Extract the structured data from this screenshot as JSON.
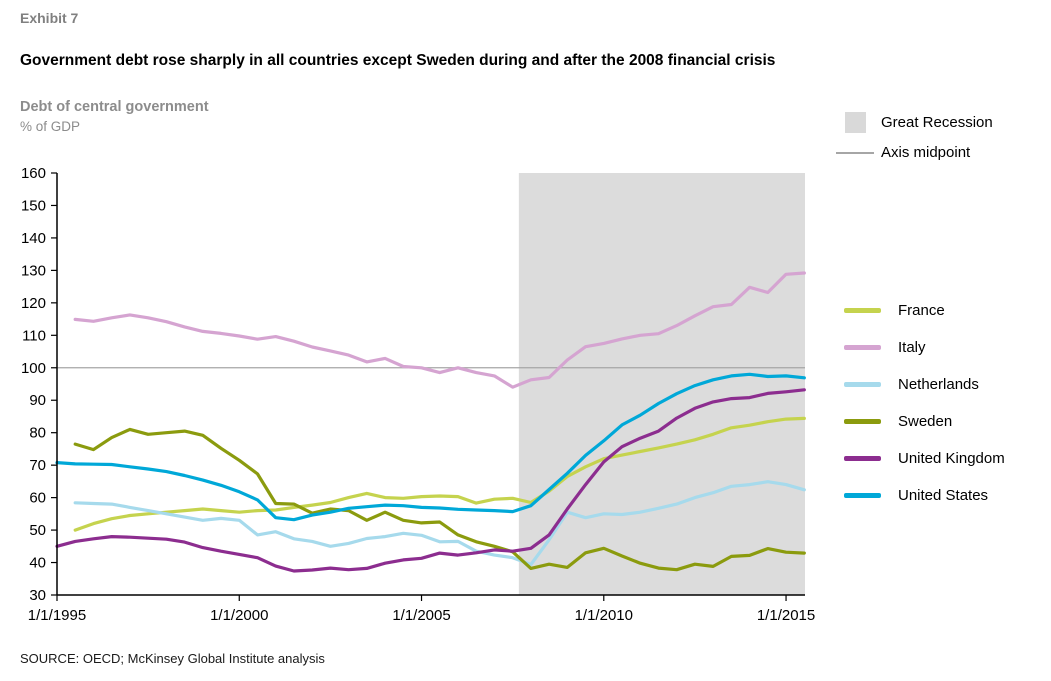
{
  "header": {
    "exhibit": "Exhibit 7",
    "title": "Government debt rose sharply in all countries except Sweden during and after the 2008 financial crisis",
    "subtitle": "Debt of central government",
    "unit": "% of GDP"
  },
  "source": "SOURCE:  OECD; McKinsey Global Institute analysis",
  "chart_data": {
    "type": "line",
    "title": "Debt of central government",
    "ylabel": "% of GDP",
    "xlabel": "",
    "xlim": [
      1995,
      2015.52
    ],
    "ylim": [
      30,
      160
    ],
    "grid": false,
    "legend_position": "right",
    "yticks": [
      30,
      40,
      50,
      60,
      70,
      80,
      90,
      100,
      110,
      120,
      130,
      140,
      150,
      160
    ],
    "xticks": [
      {
        "label": "1/1/1995",
        "year": 1995
      },
      {
        "label": "1/1/2000",
        "year": 2000
      },
      {
        "label": "1/1/2005",
        "year": 2005
      },
      {
        "label": "1/1/2010",
        "year": 2010
      },
      {
        "label": "1/1/2015",
        "year": 2015
      }
    ],
    "band": {
      "label": "Great Recession",
      "from": 2007.67,
      "to": 2015.52,
      "color": "#dcdcdc",
      "swatch_color": "#d9d9d9"
    },
    "midpoint": {
      "label": "Axis midpoint",
      "value": 100,
      "color": "#a6a6a6"
    },
    "x": [
      1995,
      1995.5,
      1996,
      1996.5,
      1997,
      1997.5,
      1998,
      1998.5,
      1999,
      1999.5,
      2000,
      2000.5,
      2001,
      2001.5,
      2002,
      2002.5,
      2003,
      2003.5,
      2004,
      2004.5,
      2005,
      2005.5,
      2006,
      2006.5,
      2007,
      2007.5,
      2008,
      2008.5,
      2009,
      2009.5,
      2010,
      2010.5,
      2011,
      2011.5,
      2012,
      2012.5,
      2013,
      2013.5,
      2014,
      2014.5,
      2015,
      2015.5
    ],
    "series": [
      {
        "name": "France",
        "color": "#c5d34e",
        "values": [
          null,
          50,
          52,
          53.5,
          54.5,
          55,
          55.5,
          56,
          56.5,
          56,
          55.5,
          56,
          56.2,
          57,
          57.7,
          58.5,
          60,
          61.3,
          60,
          59.8,
          60.3,
          60.5,
          60.3,
          58.3,
          59.5,
          59.8,
          58.5,
          62,
          66.5,
          69.5,
          72,
          73.1,
          74.2,
          75.3,
          76.5,
          77.8,
          79.5,
          81.5,
          82.3,
          83.4,
          84.2,
          84.4
        ]
      },
      {
        "name": "Italy",
        "color": "#d5a4d1",
        "values": [
          null,
          114.9,
          114.3,
          115.4,
          116.3,
          115.4,
          114.2,
          112.6,
          111.2,
          110.6,
          109.8,
          108.8,
          109.6,
          108.2,
          106.4,
          105.2,
          103.9,
          101.8,
          102.9,
          100.4,
          100,
          98.5,
          100,
          98.5,
          97.5,
          94,
          96.3,
          97,
          102.4,
          106.5,
          107.5,
          108.9,
          110,
          110.5,
          113,
          116,
          118.8,
          119.5,
          124.8,
          123.2,
          128.8,
          129.2
        ]
      },
      {
        "name": "Netherlands",
        "color": "#a6daec",
        "values": [
          null,
          58.4,
          58.2,
          58,
          57,
          56,
          55,
          54,
          53,
          53.6,
          53,
          48.5,
          49.5,
          47.3,
          46.5,
          45,
          45.9,
          47.4,
          48,
          49,
          48.4,
          46.4,
          46.5,
          43.5,
          42.3,
          41.5,
          39.4,
          47,
          55.5,
          53.8,
          55,
          54.8,
          55.5,
          56.7,
          58,
          60,
          61.5,
          63.5,
          64,
          64.9,
          64,
          62.4
        ]
      },
      {
        "name": "Sweden",
        "color": "#8b9b0e",
        "values": [
          null,
          76.5,
          74.8,
          78.5,
          81,
          79.5,
          80,
          80.5,
          79.2,
          75.2,
          71.5,
          67.3,
          58.2,
          58,
          55.2,
          56.5,
          56,
          53,
          55.5,
          53,
          52.2,
          52.5,
          48.5,
          46.4,
          45,
          43.3,
          38.2,
          39.5,
          38.5,
          43,
          44.4,
          42,
          39.8,
          38.3,
          37.8,
          39.5,
          38.8,
          41.9,
          42.2,
          44.3,
          43.2,
          42.9
        ]
      },
      {
        "name": "United Kingdom",
        "color": "#8c2d8f",
        "values": [
          45,
          46.5,
          47.3,
          48,
          47.8,
          47.5,
          47.2,
          46.3,
          44.6,
          43.5,
          42.5,
          41.5,
          38.9,
          37.4,
          37.7,
          38.3,
          37.8,
          38.2,
          39.8,
          40.8,
          41.3,
          42.9,
          42.3,
          43,
          43.9,
          43.5,
          44.4,
          48.5,
          56.5,
          64,
          71,
          75.7,
          78.3,
          80.5,
          84.5,
          87.5,
          89.5,
          90.5,
          90.8,
          92.1,
          92.6,
          93.2
        ]
      },
      {
        "name": "United States",
        "color": "#00a8d8",
        "values": [
          70.8,
          70.4,
          70.3,
          70.2,
          69.5,
          68.8,
          68,
          66.8,
          65.4,
          63.8,
          61.8,
          59.3,
          53.8,
          53.2,
          54.6,
          55.5,
          56.7,
          57.2,
          57.7,
          57.5,
          57,
          56.8,
          56.4,
          56.2,
          56,
          55.7,
          57.5,
          62.5,
          67.5,
          73,
          77.5,
          82.4,
          85.4,
          89,
          92,
          94.5,
          96.3,
          97.5,
          98,
          97.3,
          97.5,
          96.9
        ]
      }
    ]
  }
}
